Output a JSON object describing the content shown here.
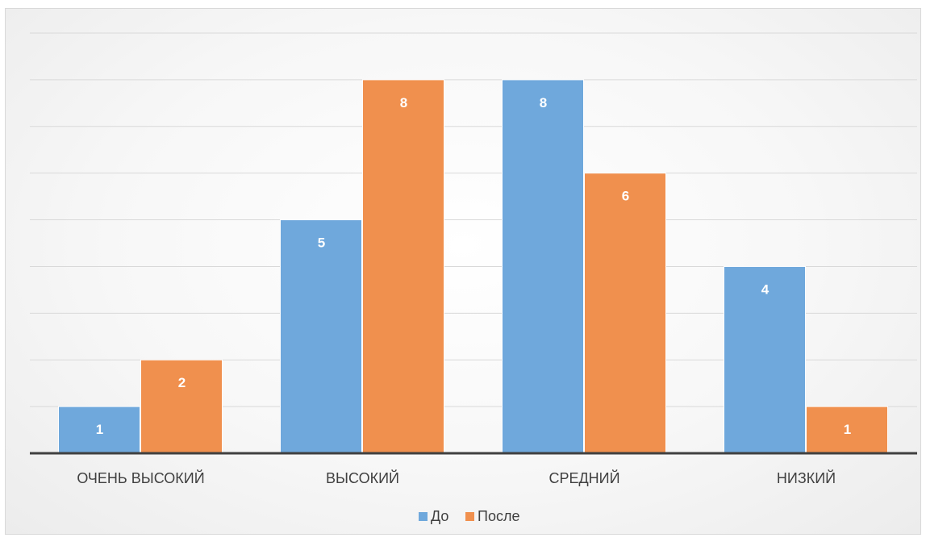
{
  "chart_data": {
    "type": "bar",
    "categories": [
      "ОЧЕНЬ ВЫСОКИЙ",
      "ВЫСОКИЙ",
      "СРЕДНИЙ",
      "НИЗКИЙ"
    ],
    "series": [
      {
        "name": "До",
        "values": [
          1,
          5,
          8,
          4
        ],
        "color": "#6FA8DC"
      },
      {
        "name": "После",
        "values": [
          2,
          8,
          6,
          1
        ],
        "color": "#F0904E"
      }
    ],
    "ylim": [
      0,
      9
    ],
    "grid": true,
    "legend": "bottom",
    "data_labels": true
  }
}
